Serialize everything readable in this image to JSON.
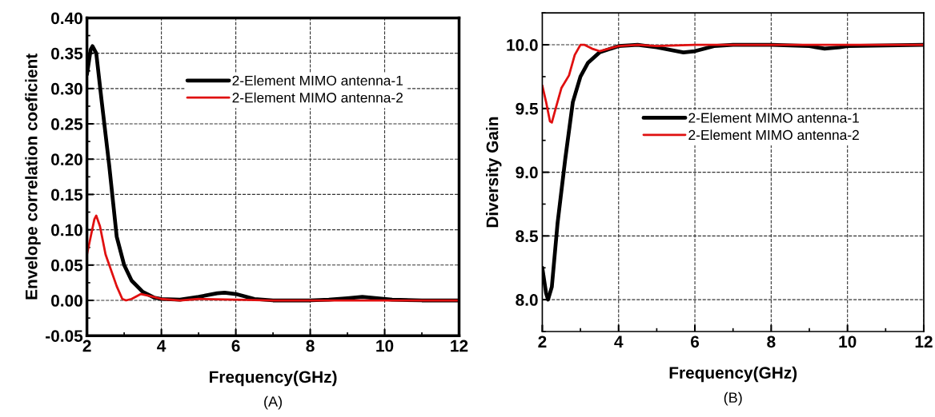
{
  "chart_data": [
    {
      "type": "line",
      "xlabel": "Frequency(GHz)",
      "ylabel": "Envelope correlation coeficient",
      "annotations": [
        "(A)"
      ],
      "xlim": [
        2,
        12
      ],
      "xticks": [
        2,
        4,
        6,
        8,
        10,
        12
      ],
      "ylim": [
        -0.05,
        0.4
      ],
      "yticks": [
        {
          "value": -0.05,
          "label": "-0.05"
        },
        {
          "value": 0,
          "label": "0.00"
        },
        {
          "value": 0.05,
          "label": "0.05"
        },
        {
          "value": 0.1,
          "label": "0.10"
        },
        {
          "value": 0.15,
          "label": "0.15"
        },
        {
          "value": 0.2,
          "label": "0.20"
        },
        {
          "value": 0.25,
          "label": "0.25"
        },
        {
          "value": 0.3,
          "label": "0.30"
        },
        {
          "value": 0.35,
          "label": "0.35"
        },
        {
          "value": 0.4,
          "label": "0.40"
        }
      ],
      "grid": true,
      "legend": "top",
      "line_style": "solid",
      "marker": "none",
      "series": [
        {
          "name": "2-Element MIMO antenna-1",
          "color": "#000000",
          "x": [
            2.0,
            2.1,
            2.15,
            2.25,
            2.4,
            2.6,
            2.8,
            3.0,
            3.2,
            3.5,
            3.8,
            4.0,
            4.5,
            5.0,
            5.5,
            5.7,
            6.0,
            6.5,
            7.0,
            8.0,
            8.5,
            9.0,
            9.4,
            9.8,
            10.2,
            11.0,
            12.0
          ],
          "values": [
            0.32,
            0.355,
            0.36,
            0.35,
            0.28,
            0.19,
            0.09,
            0.05,
            0.028,
            0.012,
            0.004,
            0.002,
            0.001,
            0.005,
            0.01,
            0.011,
            0.009,
            0.002,
            0.0,
            0.0,
            0.001,
            0.003,
            0.005,
            0.003,
            0.001,
            0.0,
            0.0
          ]
        },
        {
          "name": "2-Element MIMO antenna-2",
          "color": "#e01010",
          "x": [
            2.0,
            2.1,
            2.2,
            2.25,
            2.35,
            2.5,
            2.6,
            2.8,
            2.95,
            3.05,
            3.2,
            3.45,
            3.7,
            4.0,
            4.5,
            5.0,
            6.0,
            7.0,
            8.0,
            9.0,
            10.0,
            11.0,
            12.0
          ],
          "values": [
            0.065,
            0.09,
            0.115,
            0.12,
            0.105,
            0.065,
            0.05,
            0.02,
            0.002,
            0.0,
            0.002,
            0.009,
            0.006,
            0.002,
            0.0,
            0.002,
            0.001,
            0.0,
            0.0,
            0.0,
            0.0,
            0.0,
            0.0
          ]
        }
      ]
    },
    {
      "type": "line",
      "xlabel": "Frequency(GHz)",
      "ylabel": "Diversity Gain",
      "annotations": [
        "(B)"
      ],
      "xlim": [
        2,
        12
      ],
      "xticks": [
        2,
        4,
        6,
        8,
        10,
        12
      ],
      "ylim": [
        7.75,
        10.25
      ],
      "yticks": [
        {
          "value": 8,
          "label": "8.0"
        },
        {
          "value": 8.5,
          "label": "8.5"
        },
        {
          "value": 9,
          "label": "9.0"
        },
        {
          "value": 9.5,
          "label": "9.5"
        },
        {
          "value": 10,
          "label": "10.0"
        }
      ],
      "grid": true,
      "legend": "right",
      "line_style": "solid",
      "marker": "none",
      "series": [
        {
          "name": "2-Element MIMO antenna-1",
          "color": "#000000",
          "x": [
            2.0,
            2.1,
            2.15,
            2.25,
            2.4,
            2.6,
            2.8,
            3.0,
            3.2,
            3.5,
            4.0,
            4.5,
            5.0,
            5.7,
            6.0,
            6.5,
            7.0,
            8.0,
            9.0,
            9.4,
            9.8,
            10.0,
            12.0
          ],
          "values": [
            8.25,
            8.05,
            8.0,
            8.1,
            8.6,
            9.1,
            9.55,
            9.75,
            9.86,
            9.94,
            9.99,
            10.0,
            9.98,
            9.94,
            9.95,
            9.99,
            10.0,
            10.0,
            9.99,
            9.97,
            9.98,
            9.99,
            10.0
          ]
        },
        {
          "name": "2-Element MIMO antenna-2",
          "color": "#e01010",
          "x": [
            2.0,
            2.1,
            2.2,
            2.25,
            2.35,
            2.5,
            2.7,
            2.85,
            3.0,
            3.1,
            3.3,
            3.5,
            4.0,
            4.5,
            5.0,
            6.0,
            12.0
          ],
          "values": [
            9.68,
            9.55,
            9.4,
            9.39,
            9.5,
            9.66,
            9.76,
            9.92,
            10.0,
            10.0,
            9.97,
            9.95,
            9.99,
            10.0,
            9.99,
            10.0,
            10.0
          ]
        }
      ]
    }
  ]
}
